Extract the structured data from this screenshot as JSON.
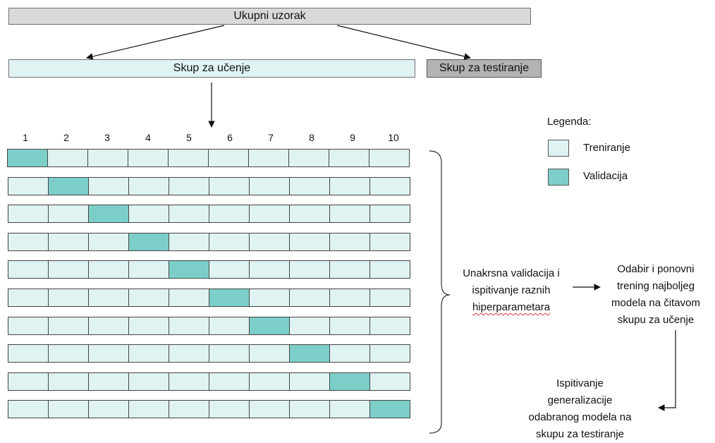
{
  "total_sample_label": "Ukupni uzorak",
  "training_set_label": "Skup za učenje",
  "test_set_label": "Skup za testiranje",
  "fold_count": 10,
  "fold_numbers": [
    "1",
    "2",
    "3",
    "4",
    "5",
    "6",
    "7",
    "8",
    "9",
    "10"
  ],
  "legend": {
    "title": "Legenda:",
    "items": [
      {
        "label": "Treniranje",
        "color": "#dff3f2"
      },
      {
        "label": "Validacija",
        "color": "#7ccfc9"
      }
    ]
  },
  "cross_validation_text": [
    "Unakrsna validacija i",
    "ispitivanje raznih",
    "hiperparametara"
  ],
  "retrain_text": [
    "Odabir i ponovni",
    "trening najboljeg",
    "modela na čitavom",
    "skupu za učenje"
  ],
  "generalization_text": [
    "Ispitivanje",
    "generalizacije",
    "odabranog modela na",
    "skupu za testiranje"
  ],
  "colors": {
    "total_fill": "#d9d9d9",
    "training_fill": "#dff3f2",
    "validation_fill": "#7ccfc9",
    "test_fill": "#b3b3b3"
  }
}
